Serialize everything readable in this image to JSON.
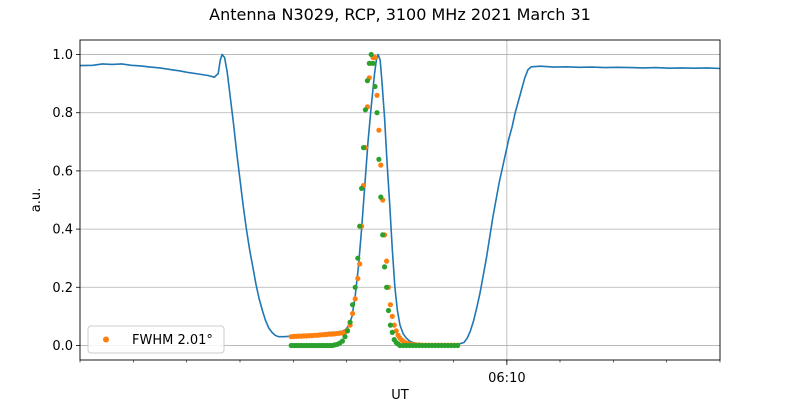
{
  "chart_data": {
    "type": "line",
    "title": "Antenna N3029, RCP, 3100 MHz 2021 March 31",
    "xlabel": "UT",
    "ylabel": "a.u.",
    "xlim": [
      0.0,
      1.0
    ],
    "ylim": [
      -0.05,
      1.05
    ],
    "x_ticks": [
      {
        "x": 0.667,
        "label": "06:10"
      }
    ],
    "y_ticks": [
      0.0,
      0.2,
      0.4,
      0.6,
      0.8,
      1.0
    ],
    "grid": true,
    "legend": {
      "position": "lower-left",
      "entries": [
        {
          "label": "FWHM 2.01$^\\circ$",
          "display": "FWHM 2.01°",
          "marker": "dot",
          "color": "#ff7f0e"
        }
      ]
    },
    "series": [
      {
        "kind": "line",
        "color": "#1f77b4",
        "points": [
          [
            0.0,
            0.962
          ],
          [
            0.02,
            0.963
          ],
          [
            0.035,
            0.968
          ],
          [
            0.05,
            0.966
          ],
          [
            0.065,
            0.968
          ],
          [
            0.08,
            0.963
          ],
          [
            0.095,
            0.961
          ],
          [
            0.11,
            0.957
          ],
          [
            0.125,
            0.954
          ],
          [
            0.14,
            0.949
          ],
          [
            0.155,
            0.944
          ],
          [
            0.17,
            0.938
          ],
          [
            0.185,
            0.933
          ],
          [
            0.2,
            0.928
          ],
          [
            0.21,
            0.922
          ],
          [
            0.216,
            0.935
          ],
          [
            0.219,
            0.98
          ],
          [
            0.222,
            1.0
          ],
          [
            0.226,
            0.99
          ],
          [
            0.23,
            0.94
          ],
          [
            0.235,
            0.85
          ],
          [
            0.24,
            0.76
          ],
          [
            0.245,
            0.66
          ],
          [
            0.25,
            0.57
          ],
          [
            0.255,
            0.48
          ],
          [
            0.26,
            0.4
          ],
          [
            0.265,
            0.33
          ],
          [
            0.27,
            0.27
          ],
          [
            0.275,
            0.21
          ],
          [
            0.28,
            0.16
          ],
          [
            0.285,
            0.12
          ],
          [
            0.29,
            0.085
          ],
          [
            0.295,
            0.06
          ],
          [
            0.3,
            0.045
          ],
          [
            0.305,
            0.035
          ],
          [
            0.31,
            0.03
          ],
          [
            0.32,
            0.03
          ],
          [
            0.33,
            0.032
          ],
          [
            0.34,
            0.035
          ],
          [
            0.35,
            0.036
          ],
          [
            0.36,
            0.038
          ],
          [
            0.37,
            0.04
          ],
          [
            0.38,
            0.042
          ],
          [
            0.39,
            0.045
          ],
          [
            0.4,
            0.046
          ],
          [
            0.41,
            0.049
          ],
          [
            0.415,
            0.055
          ],
          [
            0.42,
            0.068
          ],
          [
            0.425,
            0.1
          ],
          [
            0.43,
            0.17
          ],
          [
            0.435,
            0.27
          ],
          [
            0.44,
            0.4
          ],
          [
            0.445,
            0.55
          ],
          [
            0.45,
            0.7
          ],
          [
            0.455,
            0.82
          ],
          [
            0.46,
            0.93
          ],
          [
            0.463,
            0.98
          ],
          [
            0.466,
            1.0
          ],
          [
            0.469,
            0.98
          ],
          [
            0.472,
            0.9
          ],
          [
            0.476,
            0.78
          ],
          [
            0.48,
            0.62
          ],
          [
            0.484,
            0.48
          ],
          [
            0.488,
            0.33
          ],
          [
            0.492,
            0.2
          ],
          [
            0.496,
            0.12
          ],
          [
            0.5,
            0.07
          ],
          [
            0.505,
            0.04
          ],
          [
            0.51,
            0.025
          ],
          [
            0.515,
            0.015
          ],
          [
            0.52,
            0.01
          ],
          [
            0.53,
            0.005
          ],
          [
            0.55,
            0.003
          ],
          [
            0.57,
            0.003
          ],
          [
            0.59,
            0.004
          ],
          [
            0.6,
            0.01
          ],
          [
            0.605,
            0.025
          ],
          [
            0.61,
            0.05
          ],
          [
            0.615,
            0.085
          ],
          [
            0.62,
            0.13
          ],
          [
            0.625,
            0.18
          ],
          [
            0.63,
            0.24
          ],
          [
            0.635,
            0.3
          ],
          [
            0.64,
            0.37
          ],
          [
            0.645,
            0.44
          ],
          [
            0.65,
            0.5
          ],
          [
            0.655,
            0.56
          ],
          [
            0.66,
            0.61
          ],
          [
            0.665,
            0.66
          ],
          [
            0.67,
            0.71
          ],
          [
            0.675,
            0.75
          ],
          [
            0.68,
            0.8
          ],
          [
            0.685,
            0.84
          ],
          [
            0.69,
            0.88
          ],
          [
            0.695,
            0.92
          ],
          [
            0.7,
            0.948
          ],
          [
            0.705,
            0.958
          ],
          [
            0.72,
            0.96
          ],
          [
            0.74,
            0.957
          ],
          [
            0.76,
            0.958
          ],
          [
            0.78,
            0.956
          ],
          [
            0.8,
            0.957
          ],
          [
            0.82,
            0.955
          ],
          [
            0.84,
            0.956
          ],
          [
            0.86,
            0.955
          ],
          [
            0.88,
            0.954
          ],
          [
            0.9,
            0.955
          ],
          [
            0.92,
            0.953
          ],
          [
            0.94,
            0.954
          ],
          [
            0.96,
            0.953
          ],
          [
            0.98,
            0.954
          ],
          [
            1.0,
            0.952
          ]
        ]
      },
      {
        "kind": "scatter",
        "name": "FWHM 2.01°",
        "color": "#ff7f0e",
        "points": [
          [
            0.33,
            0.03
          ],
          [
            0.334,
            0.031
          ],
          [
            0.338,
            0.031
          ],
          [
            0.342,
            0.032
          ],
          [
            0.346,
            0.032
          ],
          [
            0.35,
            0.033
          ],
          [
            0.354,
            0.033
          ],
          [
            0.358,
            0.034
          ],
          [
            0.362,
            0.034
          ],
          [
            0.366,
            0.035
          ],
          [
            0.37,
            0.035
          ],
          [
            0.374,
            0.036
          ],
          [
            0.378,
            0.037
          ],
          [
            0.382,
            0.037
          ],
          [
            0.386,
            0.038
          ],
          [
            0.39,
            0.039
          ],
          [
            0.394,
            0.039
          ],
          [
            0.398,
            0.04
          ],
          [
            0.402,
            0.041
          ],
          [
            0.406,
            0.042
          ],
          [
            0.41,
            0.043
          ],
          [
            0.414,
            0.046
          ],
          [
            0.418,
            0.052
          ],
          [
            0.422,
            0.07
          ],
          [
            0.426,
            0.11
          ],
          [
            0.43,
            0.16
          ],
          [
            0.434,
            0.23
          ],
          [
            0.437,
            0.28
          ],
          [
            0.44,
            0.41
          ],
          [
            0.443,
            0.55
          ],
          [
            0.446,
            0.68
          ],
          [
            0.449,
            0.82
          ],
          [
            0.452,
            0.92
          ],
          [
            0.455,
            0.97
          ],
          [
            0.458,
            0.99
          ],
          [
            0.461,
            0.99
          ],
          [
            0.464,
            0.86
          ],
          [
            0.467,
            0.74
          ],
          [
            0.47,
            0.62
          ],
          [
            0.473,
            0.5
          ],
          [
            0.476,
            0.38
          ],
          [
            0.479,
            0.29
          ],
          [
            0.482,
            0.2
          ],
          [
            0.485,
            0.14
          ],
          [
            0.488,
            0.1
          ],
          [
            0.491,
            0.07
          ],
          [
            0.494,
            0.05
          ],
          [
            0.497,
            0.035
          ],
          [
            0.5,
            0.025
          ],
          [
            0.503,
            0.018
          ],
          [
            0.506,
            0.013
          ],
          [
            0.509,
            0.009
          ],
          [
            0.513,
            0.006
          ],
          [
            0.517,
            0.004
          ],
          [
            0.521,
            0.003
          ],
          [
            0.525,
            0.002
          ],
          [
            0.53,
            0.002
          ],
          [
            0.535,
            0.001
          ],
          [
            0.54,
            0.001
          ],
          [
            0.545,
            0.001
          ],
          [
            0.55,
            0.001
          ],
          [
            0.555,
            0.001
          ],
          [
            0.56,
            0.001
          ],
          [
            0.565,
            0.001
          ],
          [
            0.57,
            0.001
          ],
          [
            0.575,
            0.001
          ],
          [
            0.58,
            0.001
          ],
          [
            0.585,
            0.001
          ],
          [
            0.59,
            0.001
          ]
        ]
      },
      {
        "kind": "scatter",
        "color": "#2ca02c",
        "points": [
          [
            0.33,
            0.0
          ],
          [
            0.334,
            0.0
          ],
          [
            0.338,
            0.0
          ],
          [
            0.342,
            0.0
          ],
          [
            0.346,
            0.0
          ],
          [
            0.35,
            0.0
          ],
          [
            0.354,
            0.0
          ],
          [
            0.358,
            0.0
          ],
          [
            0.362,
            0.0
          ],
          [
            0.366,
            0.0
          ],
          [
            0.37,
            0.0
          ],
          [
            0.374,
            0.0
          ],
          [
            0.378,
            0.0
          ],
          [
            0.382,
            0.0
          ],
          [
            0.386,
            0.0
          ],
          [
            0.39,
            0.0
          ],
          [
            0.394,
            0.0
          ],
          [
            0.398,
            0.002
          ],
          [
            0.402,
            0.004
          ],
          [
            0.406,
            0.008
          ],
          [
            0.41,
            0.015
          ],
          [
            0.414,
            0.03
          ],
          [
            0.418,
            0.05
          ],
          [
            0.422,
            0.08
          ],
          [
            0.426,
            0.14
          ],
          [
            0.43,
            0.2
          ],
          [
            0.434,
            0.3
          ],
          [
            0.437,
            0.41
          ],
          [
            0.44,
            0.54
          ],
          [
            0.443,
            0.68
          ],
          [
            0.446,
            0.81
          ],
          [
            0.449,
            0.91
          ],
          [
            0.452,
            0.97
          ],
          [
            0.455,
            1.0
          ],
          [
            0.458,
            0.97
          ],
          [
            0.461,
            0.89
          ],
          [
            0.464,
            0.8
          ],
          [
            0.467,
            0.64
          ],
          [
            0.47,
            0.51
          ],
          [
            0.473,
            0.38
          ],
          [
            0.476,
            0.27
          ],
          [
            0.479,
            0.2
          ],
          [
            0.482,
            0.12
          ],
          [
            0.485,
            0.07
          ],
          [
            0.488,
            0.045
          ],
          [
            0.491,
            0.02
          ],
          [
            0.494,
            0.01
          ],
          [
            0.497,
            0.005
          ],
          [
            0.5,
            0.0
          ],
          [
            0.505,
            0.0
          ],
          [
            0.51,
            0.0
          ],
          [
            0.515,
            0.0
          ],
          [
            0.52,
            0.0
          ],
          [
            0.525,
            0.0
          ],
          [
            0.53,
            0.0
          ],
          [
            0.535,
            0.0
          ],
          [
            0.54,
            0.0
          ],
          [
            0.545,
            0.0
          ],
          [
            0.55,
            0.0
          ],
          [
            0.555,
            0.0
          ],
          [
            0.56,
            0.0
          ],
          [
            0.565,
            0.0
          ],
          [
            0.57,
            0.0
          ],
          [
            0.575,
            0.0
          ],
          [
            0.58,
            0.0
          ],
          [
            0.585,
            0.0
          ],
          [
            0.59,
            0.0
          ]
        ]
      }
    ]
  }
}
